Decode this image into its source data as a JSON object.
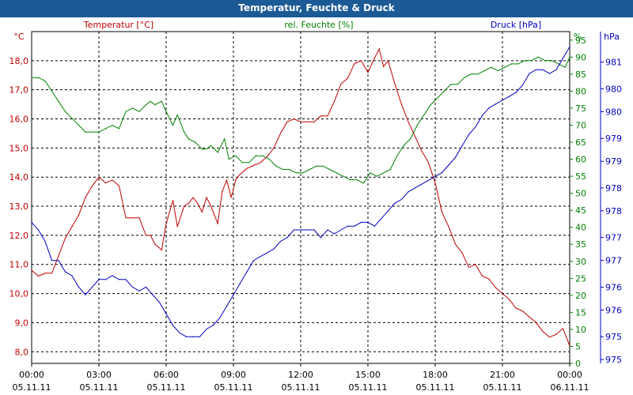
{
  "window": {
    "title": "Temperatur, Feuchte & Druck"
  },
  "colors": {
    "temperature": "#c00000",
    "humidity": "#008000",
    "pressure": "#0000c0",
    "title_bar": "#1c5a96",
    "grid": "#000000",
    "axis_left": "#c00000",
    "axis_right1": "#008000",
    "axis_right2": "#0000c0"
  },
  "chart_data": {
    "type": "line",
    "title": "Temperatur, Feuchte & Druck",
    "grid": true,
    "x_ticks": [
      {
        "time": "00:00",
        "date": "05.11.11"
      },
      {
        "time": "03:00",
        "date": "05.11.11"
      },
      {
        "time": "06:00",
        "date": "05.11.11"
      },
      {
        "time": "09:00",
        "date": "05.11.11"
      },
      {
        "time": "12:00",
        "date": "05.11.11"
      },
      {
        "time": "15:00",
        "date": "05.11.11"
      },
      {
        "time": "18:00",
        "date": "05.11.11"
      },
      {
        "time": "21:00",
        "date": "05.11.11"
      },
      {
        "time": "00:00",
        "date": "06.11.11"
      }
    ],
    "x_range_hours": [
      0,
      24
    ],
    "axes": {
      "temperature": {
        "label": "Temperatur [°C]",
        "unit": "°C",
        "range": [
          7.6,
          19.0
        ],
        "ticks": [
          "18,0",
          "17,0",
          "16,0",
          "15,0",
          "14,0",
          "13,0",
          "12,0",
          "11,0",
          "10,0",
          "9,0",
          "8,0"
        ],
        "tick_values": [
          18,
          17,
          16,
          15,
          14,
          13,
          12,
          11,
          10,
          9,
          8
        ]
      },
      "humidity": {
        "label": "rel. Feuchte [%]",
        "unit": "%",
        "range": [
          0,
          97.5
        ],
        "ticks": [
          "95",
          "90",
          "85",
          "80",
          "75",
          "70",
          "65",
          "60",
          "55",
          "50",
          "45",
          "40",
          "35",
          "30",
          "25",
          "20",
          "15",
          "10",
          "5",
          "0"
        ],
        "tick_values": [
          95,
          90,
          85,
          80,
          75,
          70,
          65,
          60,
          55,
          50,
          45,
          40,
          35,
          30,
          25,
          20,
          15,
          10,
          5,
          0
        ]
      },
      "pressure": {
        "label": "Druck [hPa]",
        "unit": "hPa",
        "range": [
          973.3,
          982.0
        ],
        "ticks": [
          "981",
          "980",
          "980",
          "979",
          "979",
          "978",
          "978",
          "977",
          "977",
          "976",
          "976",
          "975",
          "975",
          "974"
        ],
        "tick_values": [
          981.2,
          980.5,
          979.9,
          979.2,
          978.6,
          977.9,
          977.3,
          976.6,
          976.0,
          975.3,
          974.7,
          974.0,
          973.4,
          972.7
        ]
      }
    },
    "series": [
      {
        "name": "Temperatur [°C]",
        "axis": "temperature",
        "points": [
          [
            0.0,
            10.8
          ],
          [
            0.3,
            10.6
          ],
          [
            0.6,
            10.7
          ],
          [
            0.9,
            10.7
          ],
          [
            1.2,
            11.3
          ],
          [
            1.5,
            11.9
          ],
          [
            1.8,
            12.3
          ],
          [
            2.1,
            12.7
          ],
          [
            2.4,
            13.3
          ],
          [
            2.7,
            13.7
          ],
          [
            3.0,
            14.0
          ],
          [
            3.3,
            13.8
          ],
          [
            3.6,
            13.9
          ],
          [
            3.9,
            13.7
          ],
          [
            4.2,
            12.6
          ],
          [
            4.5,
            12.6
          ],
          [
            4.8,
            12.6
          ],
          [
            5.1,
            12.0
          ],
          [
            5.3,
            12.0
          ],
          [
            5.5,
            11.7
          ],
          [
            5.8,
            11.5
          ],
          [
            6.0,
            12.4
          ],
          [
            6.3,
            13.2
          ],
          [
            6.5,
            12.3
          ],
          [
            6.8,
            13.0
          ],
          [
            7.0,
            13.1
          ],
          [
            7.2,
            13.3
          ],
          [
            7.4,
            13.1
          ],
          [
            7.6,
            12.8
          ],
          [
            7.8,
            13.3
          ],
          [
            8.0,
            13.0
          ],
          [
            8.3,
            12.4
          ],
          [
            8.5,
            13.5
          ],
          [
            8.7,
            13.9
          ],
          [
            8.9,
            13.3
          ],
          [
            9.1,
            13.9
          ],
          [
            9.3,
            14.1
          ],
          [
            9.6,
            14.3
          ],
          [
            9.9,
            14.4
          ],
          [
            10.2,
            14.5
          ],
          [
            10.5,
            14.7
          ],
          [
            10.8,
            15.0
          ],
          [
            11.1,
            15.5
          ],
          [
            11.4,
            15.9
          ],
          [
            11.7,
            16.0
          ],
          [
            12.0,
            15.9
          ],
          [
            12.3,
            15.9
          ],
          [
            12.6,
            15.9
          ],
          [
            12.9,
            16.1
          ],
          [
            13.2,
            16.1
          ],
          [
            13.5,
            16.6
          ],
          [
            13.8,
            17.2
          ],
          [
            14.1,
            17.4
          ],
          [
            14.4,
            17.9
          ],
          [
            14.7,
            18.0
          ],
          [
            15.0,
            17.6
          ],
          [
            15.3,
            18.1
          ],
          [
            15.5,
            18.4
          ],
          [
            15.7,
            17.8
          ],
          [
            15.9,
            18.0
          ],
          [
            16.2,
            17.2
          ],
          [
            16.5,
            16.5
          ],
          [
            16.8,
            15.9
          ],
          [
            17.1,
            15.4
          ],
          [
            17.4,
            14.9
          ],
          [
            17.7,
            14.5
          ],
          [
            18.0,
            13.8
          ],
          [
            18.3,
            12.8
          ],
          [
            18.6,
            12.3
          ],
          [
            18.9,
            11.7
          ],
          [
            19.2,
            11.4
          ],
          [
            19.5,
            10.9
          ],
          [
            19.8,
            11.0
          ],
          [
            20.1,
            10.6
          ],
          [
            20.4,
            10.5
          ],
          [
            20.7,
            10.2
          ],
          [
            21.0,
            10.0
          ],
          [
            21.3,
            9.8
          ],
          [
            21.6,
            9.5
          ],
          [
            21.9,
            9.4
          ],
          [
            22.2,
            9.2
          ],
          [
            22.5,
            9.0
          ],
          [
            22.8,
            8.7
          ],
          [
            23.1,
            8.5
          ],
          [
            23.4,
            8.6
          ],
          [
            23.7,
            8.8
          ],
          [
            24.0,
            8.2
          ]
        ]
      },
      {
        "name": "rel. Feuchte [%]",
        "axis": "humidity",
        "points": [
          [
            0.0,
            84
          ],
          [
            0.3,
            84
          ],
          [
            0.6,
            83
          ],
          [
            0.9,
            80
          ],
          [
            1.2,
            77
          ],
          [
            1.5,
            74
          ],
          [
            1.8,
            72
          ],
          [
            2.1,
            70
          ],
          [
            2.4,
            68
          ],
          [
            2.7,
            68
          ],
          [
            3.0,
            68
          ],
          [
            3.3,
            69
          ],
          [
            3.6,
            70
          ],
          [
            3.9,
            69
          ],
          [
            4.2,
            74
          ],
          [
            4.5,
            75
          ],
          [
            4.8,
            74
          ],
          [
            5.1,
            76
          ],
          [
            5.3,
            77
          ],
          [
            5.5,
            76
          ],
          [
            5.8,
            77
          ],
          [
            6.0,
            74
          ],
          [
            6.3,
            70
          ],
          [
            6.5,
            73
          ],
          [
            6.8,
            68
          ],
          [
            7.0,
            66
          ],
          [
            7.3,
            65
          ],
          [
            7.6,
            63
          ],
          [
            7.8,
            63
          ],
          [
            8.0,
            64
          ],
          [
            8.3,
            62
          ],
          [
            8.6,
            66
          ],
          [
            8.8,
            60
          ],
          [
            9.1,
            61
          ],
          [
            9.4,
            59
          ],
          [
            9.7,
            59
          ],
          [
            10.0,
            61
          ],
          [
            10.3,
            61
          ],
          [
            10.6,
            60
          ],
          [
            10.9,
            58
          ],
          [
            11.2,
            57
          ],
          [
            11.5,
            57
          ],
          [
            11.8,
            56
          ],
          [
            12.1,
            56
          ],
          [
            12.4,
            57
          ],
          [
            12.7,
            58
          ],
          [
            13.0,
            58
          ],
          [
            13.3,
            57
          ],
          [
            13.6,
            56
          ],
          [
            13.9,
            55
          ],
          [
            14.2,
            54
          ],
          [
            14.5,
            54
          ],
          [
            14.8,
            53
          ],
          [
            15.1,
            56
          ],
          [
            15.4,
            55
          ],
          [
            15.7,
            56
          ],
          [
            16.0,
            57
          ],
          [
            16.3,
            61
          ],
          [
            16.6,
            64
          ],
          [
            16.9,
            66
          ],
          [
            17.2,
            70
          ],
          [
            17.5,
            73
          ],
          [
            17.8,
            76
          ],
          [
            18.1,
            78
          ],
          [
            18.4,
            80
          ],
          [
            18.7,
            82
          ],
          [
            19.0,
            82
          ],
          [
            19.3,
            84
          ],
          [
            19.6,
            85
          ],
          [
            19.9,
            85
          ],
          [
            20.2,
            86
          ],
          [
            20.5,
            87
          ],
          [
            20.8,
            86
          ],
          [
            21.1,
            87
          ],
          [
            21.4,
            88
          ],
          [
            21.7,
            88
          ],
          [
            22.0,
            89
          ],
          [
            22.3,
            89
          ],
          [
            22.6,
            90
          ],
          [
            22.9,
            89
          ],
          [
            23.2,
            89
          ],
          [
            23.5,
            88
          ],
          [
            23.8,
            87
          ],
          [
            24.0,
            90
          ]
        ]
      },
      {
        "name": "Druck [hPa]",
        "axis": "pressure",
        "points": [
          [
            0.0,
            977.0
          ],
          [
            0.3,
            976.8
          ],
          [
            0.6,
            976.5
          ],
          [
            0.9,
            976.0
          ],
          [
            1.2,
            976.0
          ],
          [
            1.5,
            975.7
          ],
          [
            1.8,
            975.6
          ],
          [
            2.1,
            975.3
          ],
          [
            2.4,
            975.1
          ],
          [
            2.7,
            975.3
          ],
          [
            3.0,
            975.5
          ],
          [
            3.3,
            975.5
          ],
          [
            3.6,
            975.6
          ],
          [
            3.9,
            975.5
          ],
          [
            4.2,
            975.5
          ],
          [
            4.5,
            975.3
          ],
          [
            4.8,
            975.2
          ],
          [
            5.1,
            975.3
          ],
          [
            5.4,
            975.1
          ],
          [
            5.7,
            974.9
          ],
          [
            6.0,
            974.6
          ],
          [
            6.3,
            974.3
          ],
          [
            6.6,
            974.1
          ],
          [
            6.9,
            974.0
          ],
          [
            7.2,
            974.0
          ],
          [
            7.5,
            974.0
          ],
          [
            7.8,
            974.2
          ],
          [
            8.1,
            974.3
          ],
          [
            8.4,
            974.5
          ],
          [
            8.7,
            974.8
          ],
          [
            9.0,
            975.1
          ],
          [
            9.3,
            975.4
          ],
          [
            9.6,
            975.7
          ],
          [
            9.9,
            976.0
          ],
          [
            10.2,
            976.1
          ],
          [
            10.5,
            976.2
          ],
          [
            10.8,
            976.3
          ],
          [
            11.1,
            976.5
          ],
          [
            11.4,
            976.6
          ],
          [
            11.7,
            976.8
          ],
          [
            12.0,
            976.8
          ],
          [
            12.3,
            976.8
          ],
          [
            12.6,
            976.8
          ],
          [
            12.9,
            976.6
          ],
          [
            13.2,
            976.8
          ],
          [
            13.5,
            976.7
          ],
          [
            13.8,
            976.8
          ],
          [
            14.1,
            976.9
          ],
          [
            14.4,
            976.9
          ],
          [
            14.7,
            977.0
          ],
          [
            15.0,
            977.0
          ],
          [
            15.3,
            976.9
          ],
          [
            15.6,
            977.1
          ],
          [
            15.9,
            977.3
          ],
          [
            16.2,
            977.5
          ],
          [
            16.5,
            977.6
          ],
          [
            16.8,
            977.8
          ],
          [
            17.1,
            977.9
          ],
          [
            17.4,
            978.0
          ],
          [
            17.7,
            978.1
          ],
          [
            18.0,
            978.2
          ],
          [
            18.3,
            978.3
          ],
          [
            18.6,
            978.5
          ],
          [
            18.9,
            978.7
          ],
          [
            19.2,
            979.0
          ],
          [
            19.5,
            979.3
          ],
          [
            19.8,
            979.5
          ],
          [
            20.1,
            979.8
          ],
          [
            20.4,
            980.0
          ],
          [
            20.7,
            980.1
          ],
          [
            21.0,
            980.2
          ],
          [
            21.3,
            980.3
          ],
          [
            21.6,
            980.4
          ],
          [
            21.9,
            980.6
          ],
          [
            22.2,
            980.9
          ],
          [
            22.5,
            981.0
          ],
          [
            22.8,
            981.0
          ],
          [
            23.1,
            980.9
          ],
          [
            23.4,
            981.0
          ],
          [
            23.7,
            981.3
          ],
          [
            24.0,
            981.6
          ]
        ]
      }
    ]
  }
}
